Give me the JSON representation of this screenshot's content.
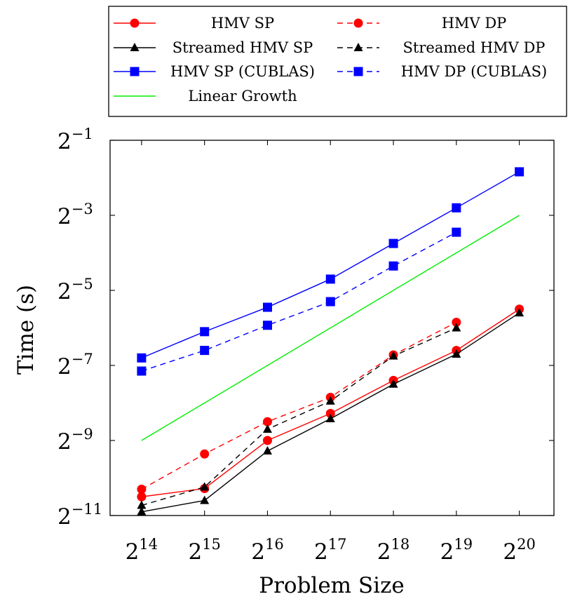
{
  "chart_data": {
    "type": "line",
    "xlabel": "Problem Size",
    "ylabel": "Time (s)",
    "x_scale": "log2",
    "y_scale": "log2",
    "x_ticks": [
      {
        "base": "2",
        "exp": "14",
        "value": 14
      },
      {
        "base": "2",
        "exp": "15",
        "value": 15
      },
      {
        "base": "2",
        "exp": "16",
        "value": 16
      },
      {
        "base": "2",
        "exp": "17",
        "value": 17
      },
      {
        "base": "2",
        "exp": "18",
        "value": 18
      },
      {
        "base": "2",
        "exp": "19",
        "value": 19
      },
      {
        "base": "2",
        "exp": "20",
        "value": 20
      }
    ],
    "y_ticks": [
      {
        "base": "2",
        "exp": "−1",
        "value": -1
      },
      {
        "base": "2",
        "exp": "−3",
        "value": -3
      },
      {
        "base": "2",
        "exp": "−5",
        "value": -5
      },
      {
        "base": "2",
        "exp": "−7",
        "value": -7
      },
      {
        "base": "2",
        "exp": "−9",
        "value": -9
      },
      {
        "base": "2",
        "exp": "−11",
        "value": -11
      }
    ],
    "xlim_log2": [
      13.5,
      20.55
    ],
    "ylim_log2": [
      -11.0,
      -1.0
    ],
    "legend_position": "top, above plot, two columns",
    "series": [
      {
        "name": "HMV SP",
        "color": "#ff0000",
        "dash": "solid",
        "marker": "circle",
        "x_log2": [
          14,
          15,
          16,
          17,
          18,
          19,
          20
        ],
        "y_log2": [
          -10.5,
          -10.28,
          -9.0,
          -8.28,
          -7.4,
          -6.6,
          -5.5
        ]
      },
      {
        "name": "HMV DP",
        "color": "#ff0000",
        "dash": "dashed",
        "marker": "circle",
        "x_log2": [
          14,
          15,
          16,
          17,
          18,
          19
        ],
        "y_log2": [
          -10.3,
          -9.36,
          -8.5,
          -7.85,
          -6.72,
          -5.85
        ]
      },
      {
        "name": "Streamed HMV SP",
        "color": "#000000",
        "dash": "solid",
        "marker": "triangle",
        "x_log2": [
          14,
          15,
          16,
          17,
          18,
          19,
          20
        ],
        "y_log2": [
          -10.9,
          -10.6,
          -9.28,
          -8.42,
          -7.5,
          -6.7,
          -5.6
        ]
      },
      {
        "name": "Streamed HMV DP",
        "color": "#000000",
        "dash": "dashed",
        "marker": "triangle",
        "x_log2": [
          14,
          15,
          16,
          17,
          18,
          19
        ],
        "y_log2": [
          -10.73,
          -10.24,
          -8.7,
          -7.95,
          -6.75,
          -6.0
        ]
      },
      {
        "name": "HMV SP (CUBLAS)",
        "color": "#0000ff",
        "dash": "solid",
        "marker": "square",
        "x_log2": [
          14,
          15,
          16,
          17,
          18,
          19,
          20
        ],
        "y_log2": [
          -6.8,
          -6.1,
          -5.45,
          -4.7,
          -3.75,
          -2.8,
          -1.84
        ]
      },
      {
        "name": "HMV DP (CUBLAS)",
        "color": "#0000ff",
        "dash": "dashed",
        "marker": "square",
        "x_log2": [
          14,
          15,
          16,
          17,
          18,
          19
        ],
        "y_log2": [
          -7.15,
          -6.6,
          -5.93,
          -5.3,
          -4.35,
          -3.45
        ]
      },
      {
        "name": "Linear Growth",
        "color": "#00ee00",
        "dash": "solid",
        "marker": "none",
        "x_log2": [
          14,
          20
        ],
        "y_log2": [
          -9.0,
          -3.0
        ]
      }
    ]
  }
}
